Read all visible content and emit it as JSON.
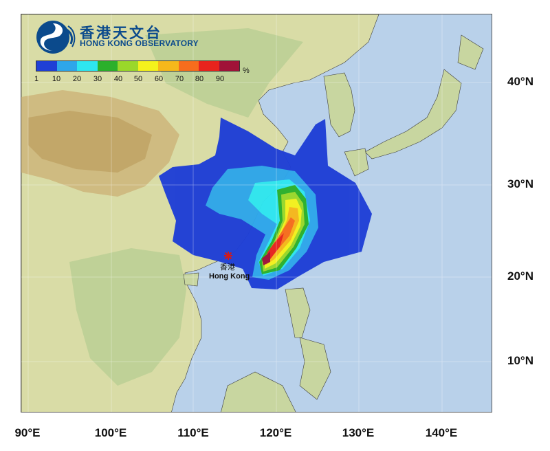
{
  "organization": {
    "name_cn": "香港天文台",
    "name_en": "HONG KONG OBSERVATORY"
  },
  "legend": {
    "unit": "%",
    "ticks": [
      "1",
      "10",
      "20",
      "30",
      "40",
      "50",
      "60",
      "70",
      "80",
      "90"
    ],
    "colors": [
      "#1f3fd6",
      "#2ea6ea",
      "#2ee6f0",
      "#2bb02b",
      "#9ad82a",
      "#f4f21c",
      "#f6b81b",
      "#f76d1d",
      "#e8231d",
      "#a01238"
    ]
  },
  "axes": {
    "longitude_labels": [
      "90°E",
      "100°E",
      "110°E",
      "120°E",
      "130°E",
      "140°E"
    ],
    "latitude_labels": [
      "40°N",
      "30°N",
      "20°N",
      "10°N"
    ]
  },
  "location": {
    "name_cn": "香港",
    "name_en": "Hong Kong",
    "marker_color": "#d11a1a"
  }
}
